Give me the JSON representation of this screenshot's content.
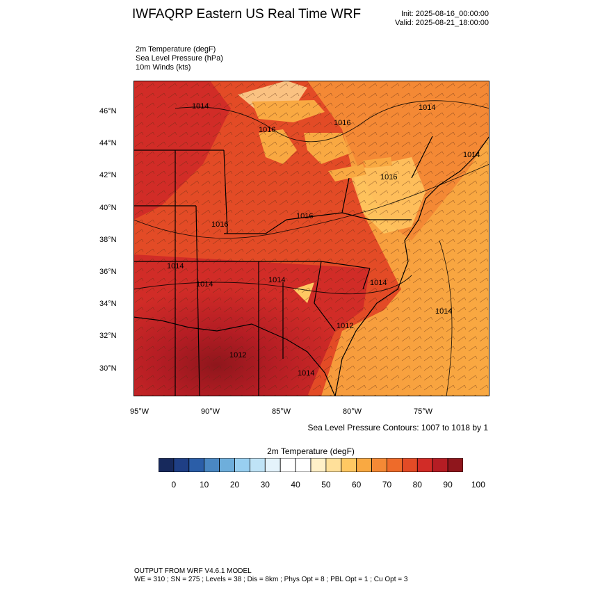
{
  "header": {
    "title": "IWFAQRP Eastern US Real Time WRF",
    "init": "Init: 2025-08-16_00:00:00",
    "valid": "Valid: 2025-08-21_18:00:00"
  },
  "fields": [
    "2m Temperature   (degF)",
    "Sea Level Pressure   (hPa)",
    "10m Winds   (kts)"
  ],
  "map": {
    "lat_labels": [
      "46°N",
      "44°N",
      "42°N",
      "40°N",
      "38°N",
      "36°N",
      "34°N",
      "32°N",
      "30°N"
    ],
    "lon_labels": [
      "95°W",
      "90°W",
      "85°W",
      "80°W",
      "75°W"
    ],
    "isobar_labels": [
      "1014",
      "1016",
      "1016",
      "1014",
      "1014",
      "1016",
      "1016",
      "1016",
      "1014",
      "1014",
      "1014",
      "1014",
      "1014",
      "1012",
      "1012",
      "1014",
      "1014",
      "1014",
      "1014",
      "1014"
    ],
    "contour_note": "Sea Level Pressure Contours: 1007 to 1018 by 1"
  },
  "colorbar": {
    "title": "2m Temperature  (degF)",
    "ticks": [
      "0",
      "10",
      "20",
      "30",
      "40",
      "50",
      "60",
      "70",
      "80",
      "90",
      "100"
    ],
    "colors": [
      "#17295c",
      "#1f3f85",
      "#2b5ea8",
      "#4a87c2",
      "#6eaedb",
      "#98cff0",
      "#bfe3f6",
      "#e4f3fb",
      "#ffffff",
      "#ffffff",
      "#fff0c8",
      "#ffe09a",
      "#ffc862",
      "#f9a942",
      "#f48935",
      "#ee6b2a",
      "#e34b26",
      "#d12c27",
      "#b51d24",
      "#8f161c"
    ]
  },
  "footer": {
    "line1": "OUTPUT FROM WRF V4.6.1 MODEL",
    "line2": "WE = 310 ; SN = 275 ; Levels = 38 ; Dis = 8km ; Phys Opt = 8 ; PBL Opt = 1 ; Cu Opt = 3"
  }
}
